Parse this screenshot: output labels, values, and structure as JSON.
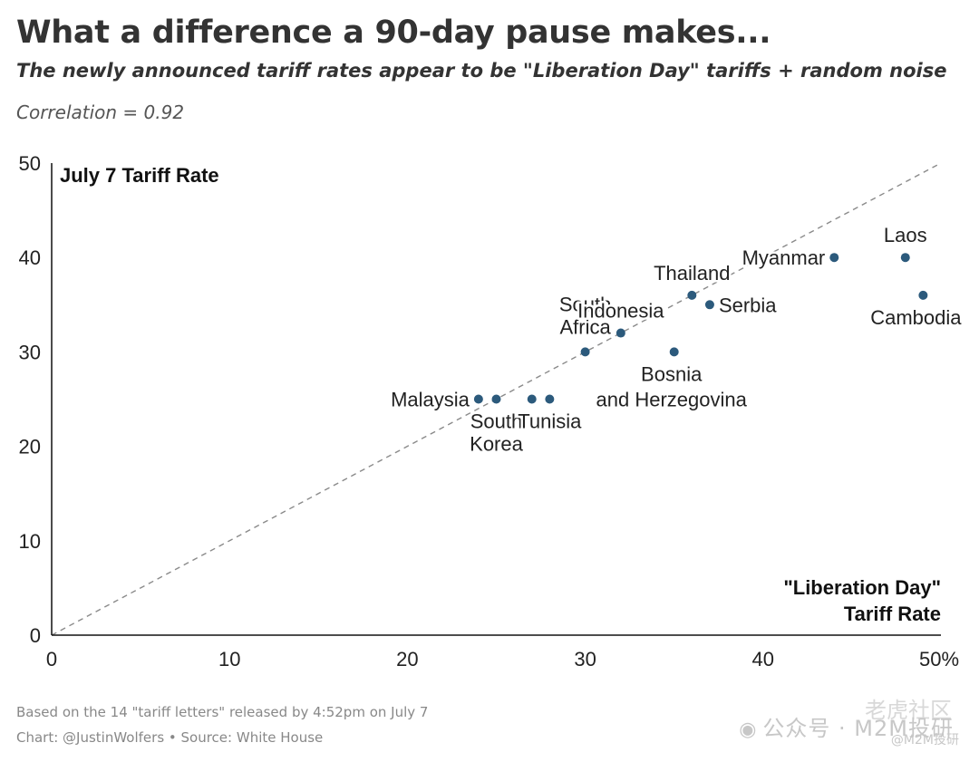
{
  "header": {
    "title": "What a difference a 90-day pause makes...",
    "subtitle": "The newly announced tariff rates appear to be \"Liberation Day\" tariffs + random noise",
    "correlation": "Correlation = 0.92"
  },
  "footer": {
    "line1": "Based on the 14 \"tariff letters\" released by 4:52pm on July 7",
    "line2": "Chart: @JustinWolfers • Source: White House",
    "watermark": "公众号 · M2M投研",
    "watermark_small": "@M2M投研",
    "watermark_stamp": "老虎社区"
  },
  "chart_data": {
    "type": "scatter",
    "xlabel": [
      "\"Liberation Day\"",
      "Tariff Rate"
    ],
    "ylabel": "July 7 Tariff Rate",
    "xlim": [
      0,
      50
    ],
    "ylim": [
      0,
      50
    ],
    "x_ticks": [
      "0",
      "10",
      "20",
      "30",
      "40",
      "50%"
    ],
    "y_ticks": [
      "0",
      "10",
      "20",
      "30",
      "40",
      "50"
    ],
    "reference_line": "y = x (dashed)",
    "grid": false,
    "point_color": "#2c5a7c",
    "points": [
      {
        "label": [
          "Malaysia"
        ],
        "x": 24,
        "y": 25
      },
      {
        "label": [
          "South",
          "Korea"
        ],
        "x": 25,
        "y": 25
      },
      {
        "label": [
          "Tunisia"
        ],
        "x": 28,
        "y": 25
      },
      {
        "label": [
          "South",
          "Africa"
        ],
        "x": 30,
        "y": 30
      },
      {
        "label": [
          "Indonesia"
        ],
        "x": 32,
        "y": 32
      },
      {
        "label": [
          "Bosnia",
          "and Herzegovina"
        ],
        "x": 35,
        "y": 30
      },
      {
        "label": [
          "Thailand"
        ],
        "x": 36,
        "y": 36
      },
      {
        "label": [
          "Serbia"
        ],
        "x": 37,
        "y": 35
      },
      {
        "label": [
          "Myanmar"
        ],
        "x": 44,
        "y": 40
      },
      {
        "label": [
          "Laos"
        ],
        "x": 48,
        "y": 40
      },
      {
        "label": [
          "Cambodia"
        ],
        "x": 49,
        "y": 36
      },
      {
        "label": [],
        "x": 27,
        "y": 25
      }
    ]
  }
}
